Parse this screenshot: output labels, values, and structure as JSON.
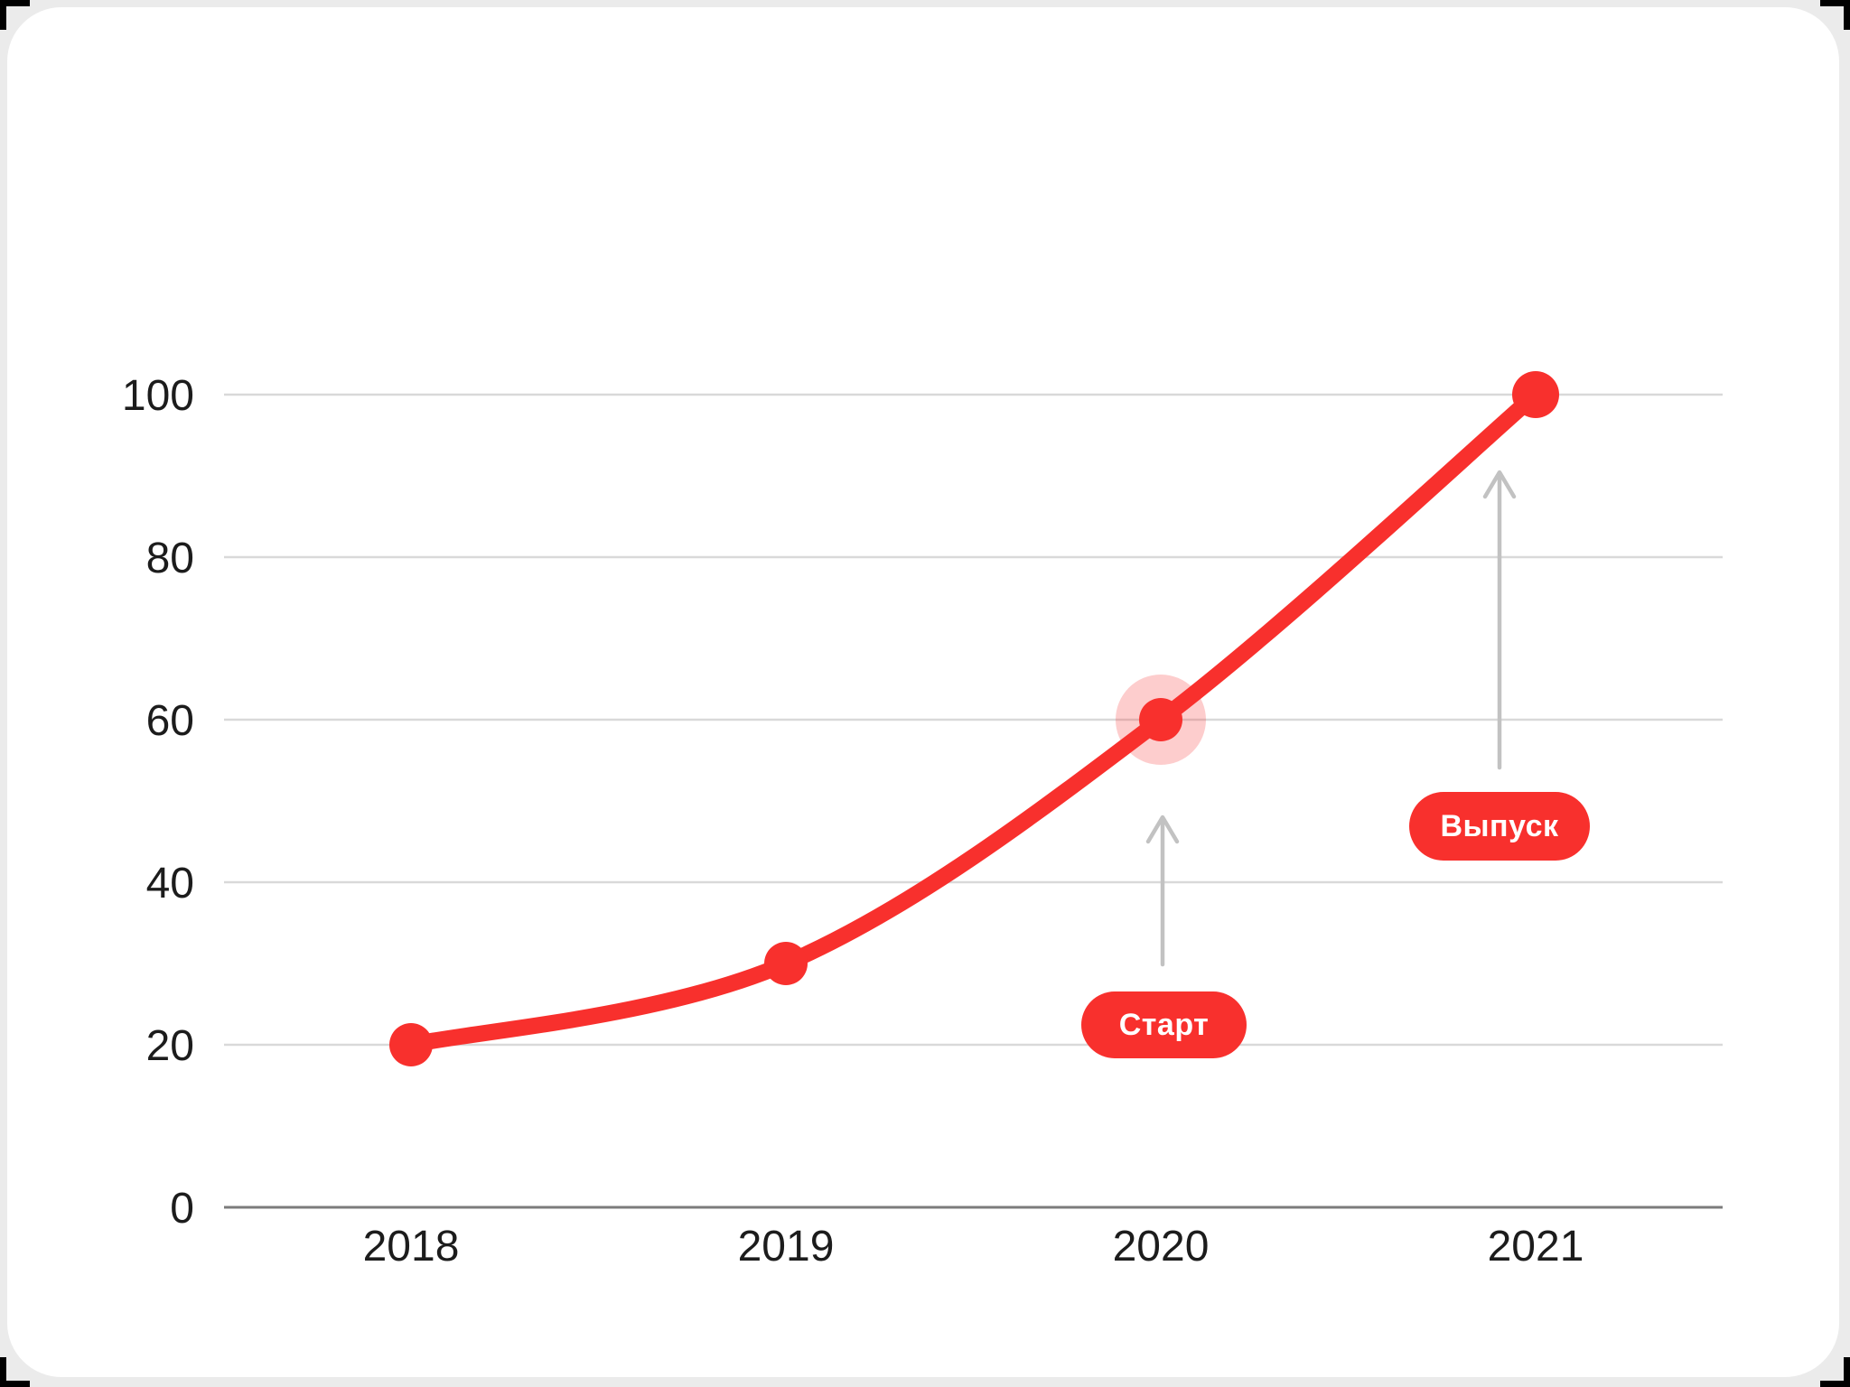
{
  "page": {
    "background_color": "#EBEBEB",
    "card_color": "#FFFFFF",
    "crop_mark_color": "#000000"
  },
  "chart_data": {
    "type": "line",
    "title": "",
    "xlabel": "",
    "ylabel": "",
    "categories": [
      "2018",
      "2019",
      "2020",
      "2021"
    ],
    "values": [
      20,
      30,
      60,
      100
    ],
    "ylim": [
      0,
      100
    ],
    "yticks": [
      0,
      20,
      40,
      60,
      80,
      100
    ],
    "grid": true,
    "legend": false,
    "highlight_category": "2020",
    "annotations": [
      {
        "label": "Старт",
        "target_category": "2020"
      },
      {
        "label": "Выпуск",
        "target_category": "2021"
      }
    ],
    "colors": {
      "line": "#F8302D",
      "point": "#F8302D",
      "halo": "#F8302D",
      "halo_opacity": 0.24,
      "pill_background": "#F8302D",
      "pill_text": "#FFFFFF",
      "arrow": "#C2C2C2",
      "gridline": "#D9D9D9",
      "axis": "#7C7C7C",
      "tick_text": "#1C1C1C"
    }
  }
}
